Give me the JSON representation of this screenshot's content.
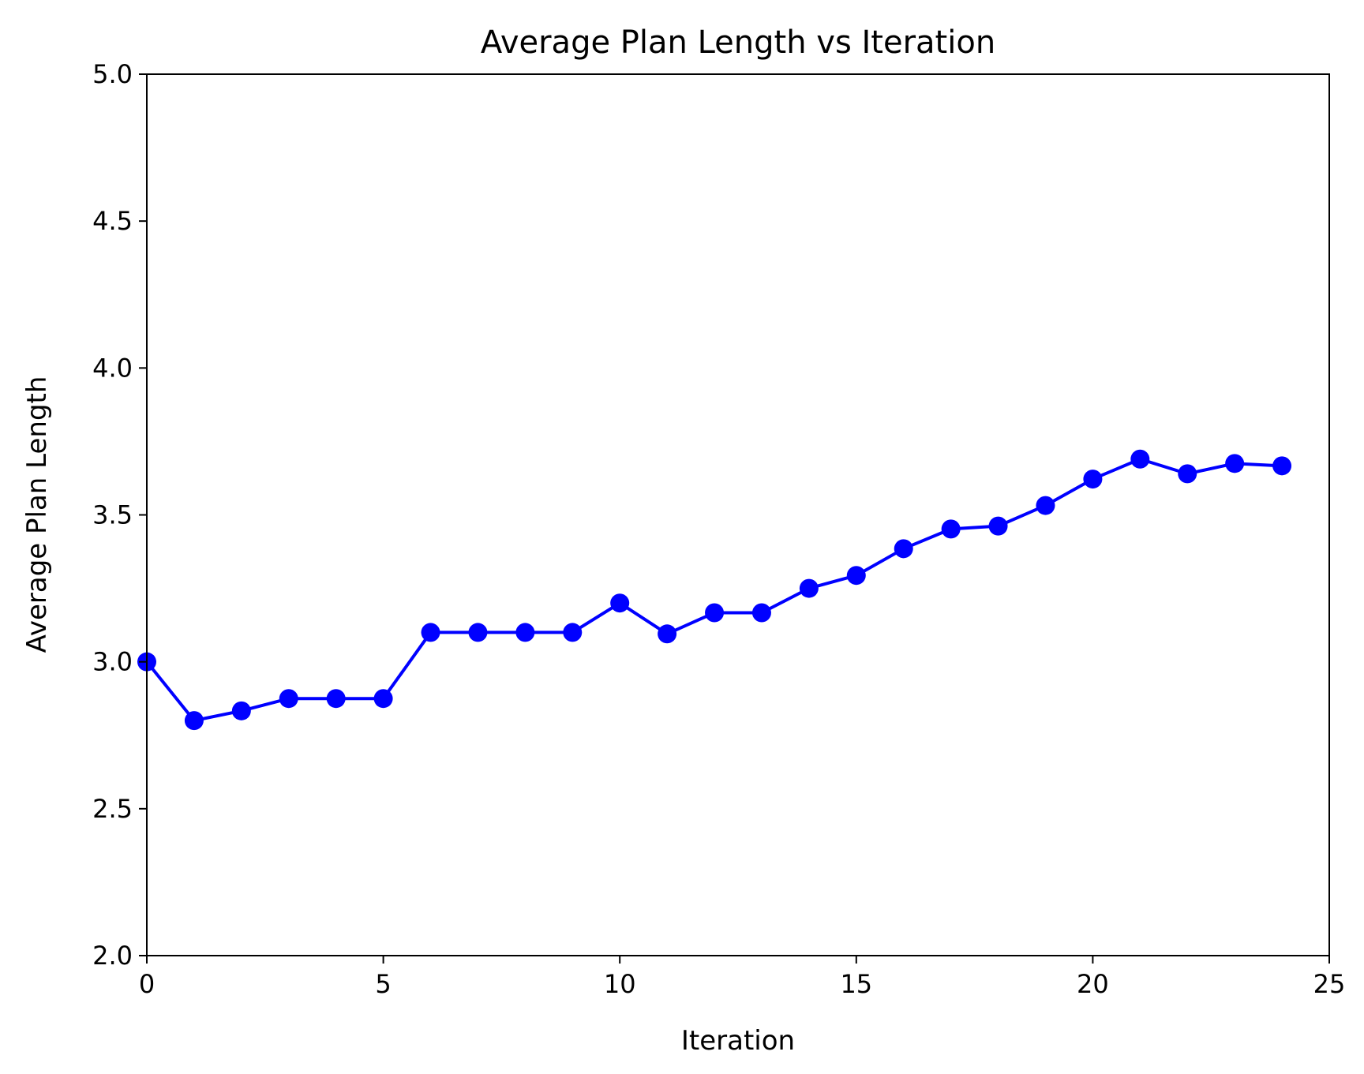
{
  "chart_data": {
    "type": "line",
    "title": "Average Plan Length vs Iteration",
    "xlabel": "Iteration",
    "ylabel": "Average Plan Length",
    "xlim": [
      0,
      25
    ],
    "ylim": [
      2.0,
      5.0
    ],
    "xticks": [
      "0",
      "5",
      "10",
      "15",
      "20",
      "25"
    ],
    "yticks": [
      "2.0",
      "2.5",
      "3.0",
      "3.5",
      "4.0",
      "4.5",
      "5.0"
    ],
    "grid": false,
    "legend": "none",
    "series": [
      {
        "color": "#0000ff",
        "marker": "circle",
        "x": [
          0,
          1,
          2,
          3,
          4,
          5,
          6,
          7,
          8,
          9,
          10,
          11,
          12,
          13,
          14,
          15,
          16,
          17,
          18,
          19,
          20,
          21,
          22,
          23,
          24
        ],
        "y": [
          3.0,
          2.8,
          2.833,
          2.875,
          2.875,
          2.875,
          3.1,
          3.1,
          3.1,
          3.1,
          3.2,
          3.095,
          3.167,
          3.167,
          3.25,
          3.294,
          3.385,
          3.452,
          3.462,
          3.532,
          3.622,
          3.69,
          3.64,
          3.675,
          3.667
        ]
      }
    ]
  }
}
